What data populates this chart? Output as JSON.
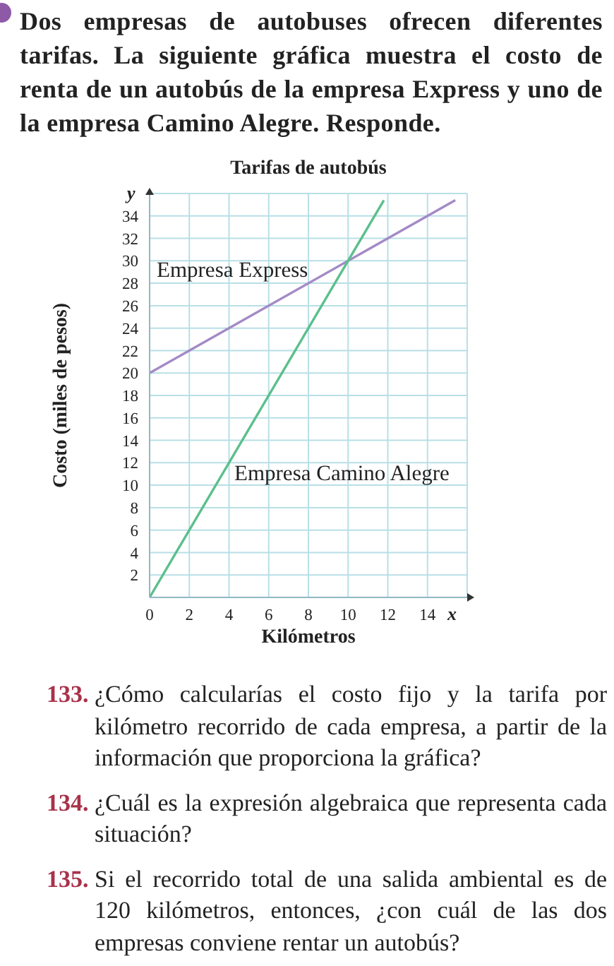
{
  "chart_data": {
    "type": "line",
    "title": "Tarifas de autobús",
    "xlabel": "Kilómetros",
    "ylabel": "Costo (miles de pesos)",
    "series": [
      {
        "name": "Empresa Express",
        "color": "#a48ac6",
        "x": [
          0,
          15.4
        ],
        "values": [
          20,
          35.4
        ]
      },
      {
        "name": "Empresa Camino Alegre",
        "color": "#5cbf8c",
        "x": [
          0,
          11.8
        ],
        "values": [
          0,
          35.4
        ]
      }
    ],
    "xlim": [
      0,
      16
    ],
    "xticks": [
      0,
      2,
      4,
      6,
      8,
      10,
      12,
      14
    ],
    "ylim": [
      0,
      36
    ],
    "yticks": [
      2,
      4,
      6,
      8,
      10,
      12,
      14,
      16,
      18,
      20,
      22,
      24,
      26,
      28,
      30,
      32,
      34
    ],
    "grid": true,
    "line_style": "solid",
    "annotations": [
      "y",
      "x",
      "Dos empresas de autobuses ofrecen diferentes tarifas. La siguiente gráfica muestra el costo de renta de un autobús de la empresa Express y uno de la empresa Camino Alegre. Responde.",
      "133. ¿Cómo calcularías el costo fijo y la tarifa por kilómetro recorrido de cada empresa, a partir de la información que proporciona la gráfica?",
      "134. ¿Cuál es la expresión algebraica que representa cada situación?",
      "135. Si el recorrido total de una salida ambiental es de 120 kilómetros, entonces, ¿con cuál de las dos empresas conviene rentar un autobús?"
    ]
  }
}
